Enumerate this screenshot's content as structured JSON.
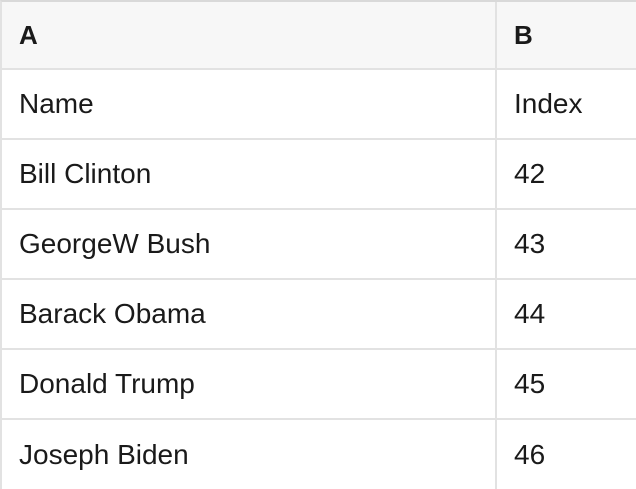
{
  "table": {
    "column_headers": [
      "A",
      "B"
    ],
    "rows": [
      {
        "a": "Name",
        "b": "Index"
      },
      {
        "a": "Bill Clinton",
        "b": "42"
      },
      {
        "a": "GeorgeW Bush",
        "b": "43"
      },
      {
        "a": "Barack Obama",
        "b": "44"
      },
      {
        "a": "Donald Trump",
        "b": "45"
      },
      {
        "a": "Joseph Biden",
        "b": "46"
      }
    ],
    "colors": {
      "header_bg": "#f7f7f7",
      "row_bg": "#ffffff",
      "border": "#e2e2e2",
      "border_outer": "#d9d9d9",
      "text": "#1a1a1a"
    }
  }
}
